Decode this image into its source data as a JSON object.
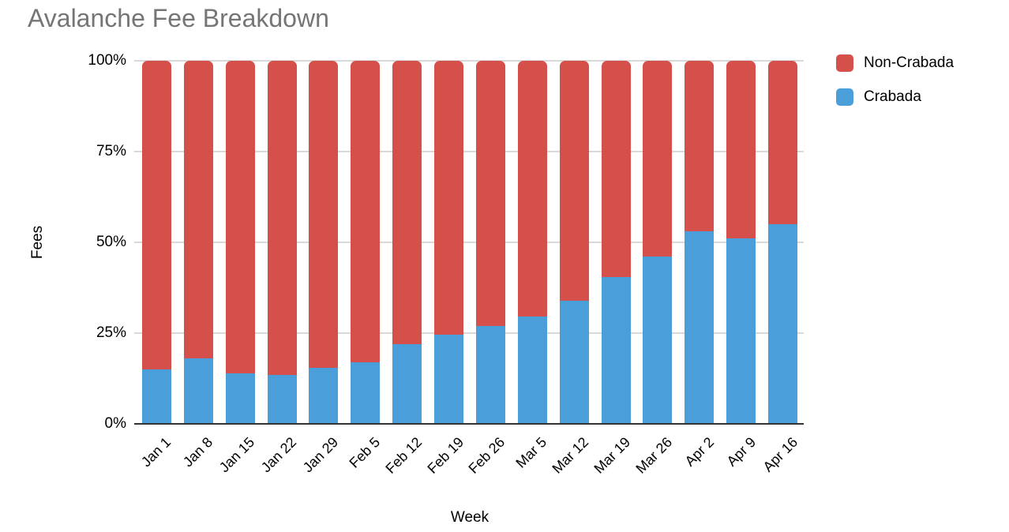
{
  "title": "Avalanche Fee Breakdown",
  "axes": {
    "y_title": "Fees",
    "x_title": "Week",
    "y_ticks": [
      {
        "label": "100%",
        "value": 100
      },
      {
        "label": "75%",
        "value": 75
      },
      {
        "label": "50%",
        "value": 50
      },
      {
        "label": "25%",
        "value": 25
      },
      {
        "label": "0%",
        "value": 0
      }
    ]
  },
  "legend": [
    {
      "label": "Non-Crabada",
      "color": "#D5504A"
    },
    {
      "label": "Crabada",
      "color": "#4A9FDB"
    }
  ],
  "chart_data": {
    "type": "bar",
    "variant": "stacked-100-percent",
    "title": "Avalanche Fee Breakdown",
    "xlabel": "Week",
    "ylabel": "Fees",
    "categories": [
      "Jan 1",
      "Jan 8",
      "Jan 15",
      "Jan 22",
      "Jan 29",
      "Feb 5",
      "Feb 12",
      "Feb 19",
      "Feb 26",
      "Mar 5",
      "Mar 12",
      "Mar 19",
      "Mar 26",
      "Apr 2",
      "Apr 9",
      "Apr 16"
    ],
    "series": [
      {
        "name": "Non-Crabada",
        "color": "#D5504A",
        "stack_position": "top",
        "values": [
          85,
          82,
          86,
          86.5,
          84.5,
          83,
          78,
          75.5,
          73,
          70.5,
          66,
          59.5,
          54,
          47,
          49,
          45
        ]
      },
      {
        "name": "Crabada",
        "color": "#4A9FDB",
        "stack_position": "bottom",
        "values": [
          15,
          18,
          14,
          13.5,
          15.5,
          17,
          22,
          24.5,
          27,
          29.5,
          34,
          40.5,
          46,
          53,
          51,
          55
        ]
      }
    ],
    "ylim": [
      0,
      100
    ],
    "y_tick_labels": [
      "0%",
      "25%",
      "50%",
      "75%",
      "100%"
    ],
    "grid": true,
    "legend_position": "top-right",
    "colors": {
      "grid": "#D9D9D9",
      "axis_line": "#333333",
      "title_text": "#757575",
      "label_text": "#000000",
      "background": "#FFFFFF"
    }
  }
}
